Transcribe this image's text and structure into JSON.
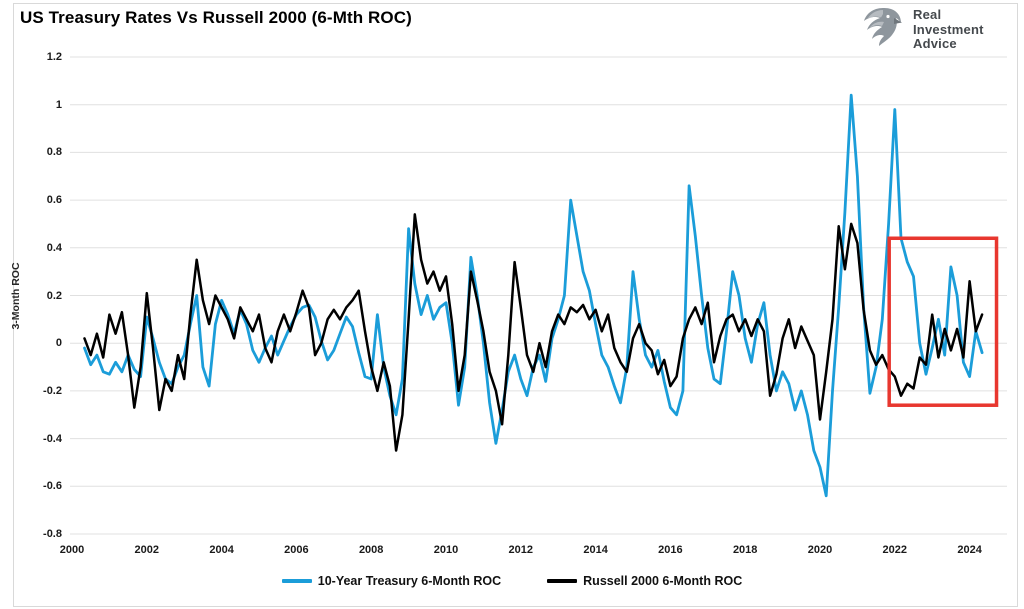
{
  "title": "US Treasury Rates Vs Russell 2000 (6-Mth ROC)",
  "logo": {
    "line1": "Real",
    "line2": "Investment",
    "line3": "Advice"
  },
  "chart_data": {
    "type": "line",
    "title": "US Treasury Rates Vs Russell 2000 (6-Mth ROC)",
    "xlabel": "",
    "ylabel": "3-Month ROC",
    "ylim": [
      -0.8,
      1.2
    ],
    "xlim": [
      1999.95,
      2025.0
    ],
    "grid": true,
    "legend_position": "bottom",
    "background": "#ffffff",
    "gridline_color": "#e0e0e0",
    "x_ticks": [
      2000,
      2002,
      2004,
      2006,
      2008,
      2010,
      2012,
      2014,
      2016,
      2018,
      2020,
      2022,
      2024
    ],
    "y_tick_labels": [
      "1.2",
      "1",
      "0.8",
      "0.6",
      "0.4",
      "0.2",
      "0",
      "-0.2",
      "-0.4",
      "-0.6",
      "-0.8"
    ],
    "x_start": 2000.3333,
    "x_step": 0.166667,
    "series": [
      {
        "name": "10-Year Treasury 6-Month ROC",
        "color": "#1b9dd9",
        "values": [
          -0.02,
          -0.09,
          -0.05,
          -0.12,
          -0.13,
          -0.08,
          -0.12,
          -0.05,
          -0.11,
          -0.14,
          0.11,
          0.02,
          -0.08,
          -0.15,
          -0.17,
          -0.1,
          -0.05,
          0.08,
          0.2,
          -0.1,
          -0.18,
          0.08,
          0.18,
          0.12,
          0.04,
          0.14,
          0.08,
          -0.03,
          -0.08,
          -0.02,
          0.03,
          -0.05,
          0.01,
          0.07,
          0.12,
          0.15,
          0.16,
          0.11,
          0.01,
          -0.07,
          -0.03,
          0.04,
          0.11,
          0.07,
          -0.04,
          -0.14,
          -0.15,
          0.12,
          -0.1,
          -0.22,
          -0.3,
          -0.15,
          0.48,
          0.25,
          0.12,
          0.2,
          0.1,
          0.15,
          0.17,
          0.0,
          -0.26,
          -0.1,
          0.36,
          0.2,
          0.0,
          -0.25,
          -0.42,
          -0.28,
          -0.12,
          -0.05,
          -0.15,
          -0.22,
          -0.1,
          -0.05,
          -0.16,
          0.02,
          0.1,
          0.2,
          0.6,
          0.45,
          0.3,
          0.22,
          0.08,
          -0.05,
          -0.1,
          -0.18,
          -0.25,
          -0.1,
          0.3,
          0.1,
          -0.05,
          -0.1,
          -0.03,
          -0.16,
          -0.27,
          -0.3,
          -0.2,
          0.66,
          0.45,
          0.2,
          -0.02,
          -0.15,
          -0.17,
          0.05,
          0.3,
          0.2,
          0.02,
          -0.08,
          0.08,
          0.17,
          -0.05,
          -0.2,
          -0.12,
          -0.17,
          -0.28,
          -0.2,
          -0.3,
          -0.45,
          -0.52,
          -0.64,
          -0.2,
          0.15,
          0.55,
          1.04,
          0.7,
          0.15,
          -0.21,
          -0.1,
          0.1,
          0.5,
          0.98,
          0.44,
          0.34,
          0.28,
          0.0,
          -0.13,
          -0.02,
          0.1,
          -0.05,
          0.32,
          0.2,
          -0.08,
          -0.14,
          0.05,
          -0.04
        ]
      },
      {
        "name": "Russell 2000 6-Month ROC",
        "color": "#000000",
        "values": [
          0.02,
          -0.05,
          0.04,
          -0.06,
          0.12,
          0.04,
          0.13,
          -0.05,
          -0.27,
          -0.1,
          0.21,
          -0.02,
          -0.28,
          -0.15,
          -0.2,
          -0.05,
          -0.15,
          0.12,
          0.35,
          0.18,
          0.08,
          0.2,
          0.15,
          0.1,
          0.02,
          0.15,
          0.1,
          0.05,
          0.12,
          -0.02,
          -0.08,
          0.05,
          0.12,
          0.05,
          0.13,
          0.22,
          0.15,
          -0.05,
          0.0,
          0.1,
          0.14,
          0.1,
          0.15,
          0.18,
          0.22,
          0.05,
          -0.1,
          -0.2,
          -0.08,
          -0.18,
          -0.45,
          -0.3,
          0.1,
          0.54,
          0.35,
          0.25,
          0.3,
          0.22,
          0.28,
          0.08,
          -0.2,
          -0.05,
          0.3,
          0.18,
          0.05,
          -0.12,
          -0.2,
          -0.34,
          -0.05,
          0.34,
          0.15,
          -0.05,
          -0.12,
          0.0,
          -0.1,
          0.05,
          0.12,
          0.08,
          0.15,
          0.13,
          0.16,
          0.1,
          0.14,
          0.05,
          0.12,
          -0.02,
          -0.08,
          -0.12,
          0.02,
          0.08,
          0.0,
          -0.03,
          -0.13,
          -0.07,
          -0.18,
          -0.14,
          0.02,
          0.1,
          0.15,
          0.08,
          0.17,
          -0.08,
          0.03,
          0.1,
          0.12,
          0.05,
          0.1,
          0.03,
          0.1,
          0.05,
          -0.22,
          -0.13,
          0.02,
          0.1,
          -0.02,
          0.07,
          0.01,
          -0.05,
          -0.32,
          -0.12,
          0.1,
          0.49,
          0.31,
          0.5,
          0.42,
          0.14,
          -0.03,
          -0.09,
          -0.05,
          -0.11,
          -0.14,
          -0.22,
          -0.17,
          -0.19,
          -0.06,
          -0.09,
          0.12,
          -0.06,
          0.06,
          -0.03,
          0.06,
          -0.06,
          0.26,
          0.05,
          0.12
        ]
      }
    ],
    "annotation_box": {
      "x0": 2021.85,
      "x1": 2024.72,
      "y0": -0.26,
      "y1": 0.44,
      "color": "#e8372f"
    }
  }
}
